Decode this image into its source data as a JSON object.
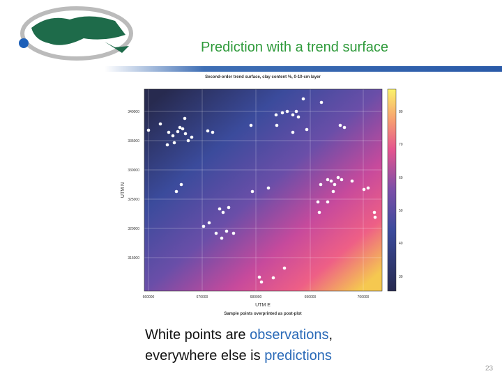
{
  "header": {
    "title": "Prediction with a trend surface"
  },
  "figure": {
    "title": "Second-order trend surface, clay content %, 0-10-cm layer",
    "x_axis_label": "UTM E",
    "y_axis_label": "UTM N",
    "x_tick_labels": [
      "660000",
      "670000",
      "680000",
      "690000",
      "700000"
    ],
    "y_tick_labels": [
      "340000",
      "335000",
      "330000",
      "325000",
      "320000",
      "315000"
    ],
    "colorbar_labels": [
      "80",
      "70",
      "60",
      "50",
      "40",
      "30"
    ],
    "subtitle": "Sample points overprinted as post-plot"
  },
  "caption": {
    "line1": [
      "White points are ",
      "observations",
      ","
    ],
    "line2": [
      "everywhere else is ",
      "predictions"
    ]
  },
  "page_number": "23"
}
